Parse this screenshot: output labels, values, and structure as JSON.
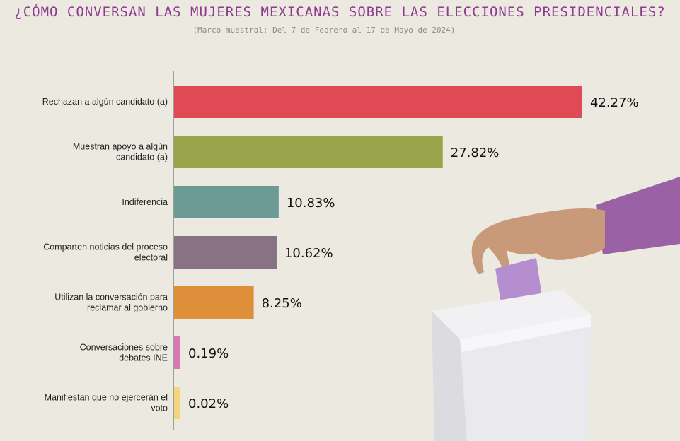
{
  "title": "¿CÓMO CONVERSAN LAS MUJERES MEXICANAS SOBRE LAS ELECCIONES PRESIDENCIALES?",
  "subtitle": "(Marco muestral: Del 7 de Febrero al 17 de Mayo de 2024)",
  "illustration": {
    "description_icon": "ballot-box-icon"
  },
  "chart_data": {
    "type": "bar",
    "orientation": "horizontal",
    "title": "¿CÓMO CONVERSAN LAS MUJERES MEXICANAS SOBRE LAS ELECCIONES PRESIDENCIALES?",
    "subtitle": "(Marco muestral: Del 7 de Febrero al 17 de Mayo de 2024)",
    "categories": [
      [
        "Rechazan a algún candidato (a)"
      ],
      [
        "Muestran apoyo a algún",
        "candidato (a)"
      ],
      [
        "Indiferencia"
      ],
      [
        "Comparten noticias del proceso",
        "electoral"
      ],
      [
        "Utilizan la conversación para",
        "reclamar al gobierno"
      ],
      [
        "Conversaciones sobre",
        "debates INE"
      ],
      [
        "Manifiestan que no ejercerán el",
        "voto"
      ]
    ],
    "values": [
      42.27,
      27.82,
      10.83,
      10.62,
      8.25,
      0.19,
      0.02
    ],
    "value_labels": [
      "42.27%",
      "27.82%",
      "10.83%",
      "10.62%",
      "8.25%",
      "0.19%",
      "0.02%"
    ],
    "colors": [
      "#e04a55",
      "#98a54a",
      "#6b9b94",
      "#877383",
      "#df8f3a",
      "#da77b3",
      "#f4d47c"
    ],
    "xlabel": "",
    "ylabel": "",
    "grid": false,
    "legend": "none"
  }
}
